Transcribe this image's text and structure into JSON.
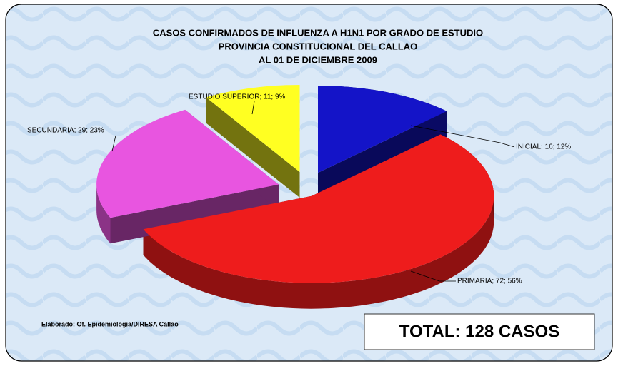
{
  "chart_data": {
    "type": "pie",
    "title": [
      "CASOS CONFIRMADOS DE INFLUENZA A H1N1 POR GRADO DE ESTUDIO",
      "PROVINCIA CONSTITUCIONAL DEL CALLAO",
      "AL  01 DE  DICIEMBRE 2009"
    ],
    "categories": [
      "INICIAL",
      "PRIMARIA",
      "SECUNDARIA",
      "ESTUDIO SUPERIOR"
    ],
    "values": [
      16,
      72,
      29,
      11
    ],
    "value_labels": [
      "INICIAL; 16; 12%",
      "PRIMARIA; 72; 56%",
      "SECUNDARIA; 29; 23%",
      "ESTUDIO SUPERIOR; 11; 9%"
    ],
    "colors": [
      "#1414c8",
      "#ee1c1c",
      "#e855e0",
      "#ffff22"
    ],
    "source": "Elaborado: Of. Epidemiologia/DIRESA Callao",
    "total": "TOTAL: 128 CASOS"
  }
}
